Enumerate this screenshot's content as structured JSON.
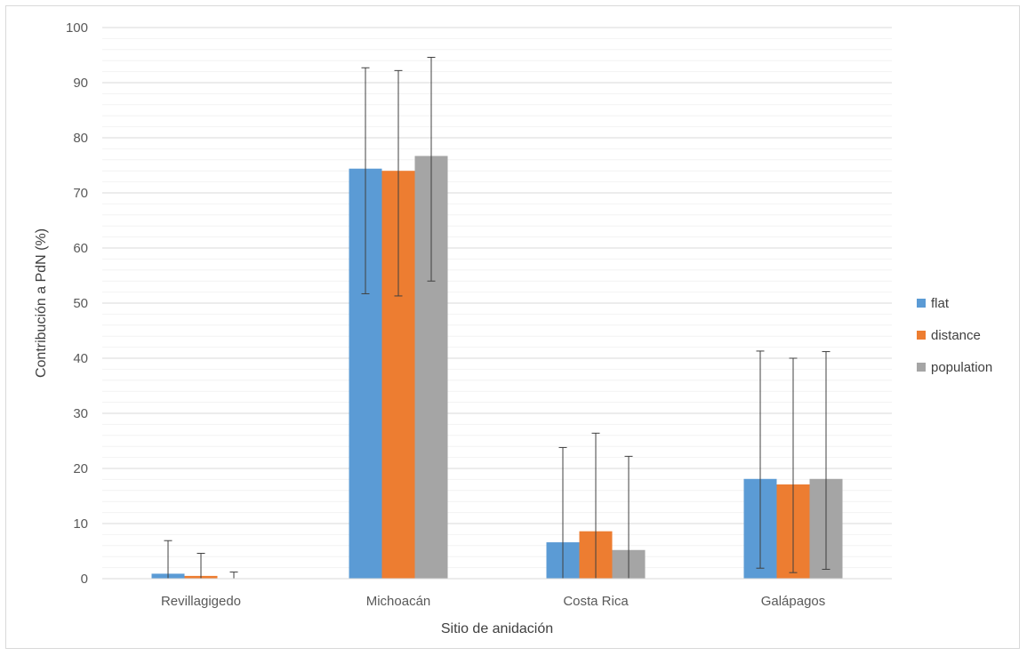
{
  "chart_data": {
    "type": "bar",
    "title": "",
    "xlabel": "Sitio de anidación",
    "ylabel": "Contribución a PdN (%)",
    "ylim": [
      0,
      100
    ],
    "yticks": [
      0,
      10,
      20,
      30,
      40,
      50,
      60,
      70,
      80,
      90,
      100
    ],
    "minor_gridlines": true,
    "legend_position": "right",
    "categories": [
      "Revillagigedo",
      "Michoacán",
      "Costa Rica",
      "Galápagos"
    ],
    "series": [
      {
        "name": "flat",
        "color": "#5b9bd5",
        "values": [
          0.9,
          74.4,
          6.6,
          18.1
        ],
        "error_low": [
          0.0,
          51.7,
          0.0,
          1.9
        ],
        "error_high": [
          6.9,
          92.7,
          23.8,
          41.3
        ]
      },
      {
        "name": "distance",
        "color": "#ed7d31",
        "values": [
          0.5,
          74.0,
          8.6,
          17.1
        ],
        "error_low": [
          0.0,
          51.3,
          0.0,
          1.1
        ],
        "error_high": [
          4.6,
          92.2,
          26.4,
          40.0
        ]
      },
      {
        "name": "population",
        "color": "#a5a5a5",
        "values": [
          0.0,
          76.7,
          5.2,
          18.1
        ],
        "error_low": [
          0.0,
          54.0,
          0.0,
          1.7
        ],
        "error_high": [
          1.2,
          94.6,
          22.2,
          41.2
        ]
      }
    ]
  }
}
